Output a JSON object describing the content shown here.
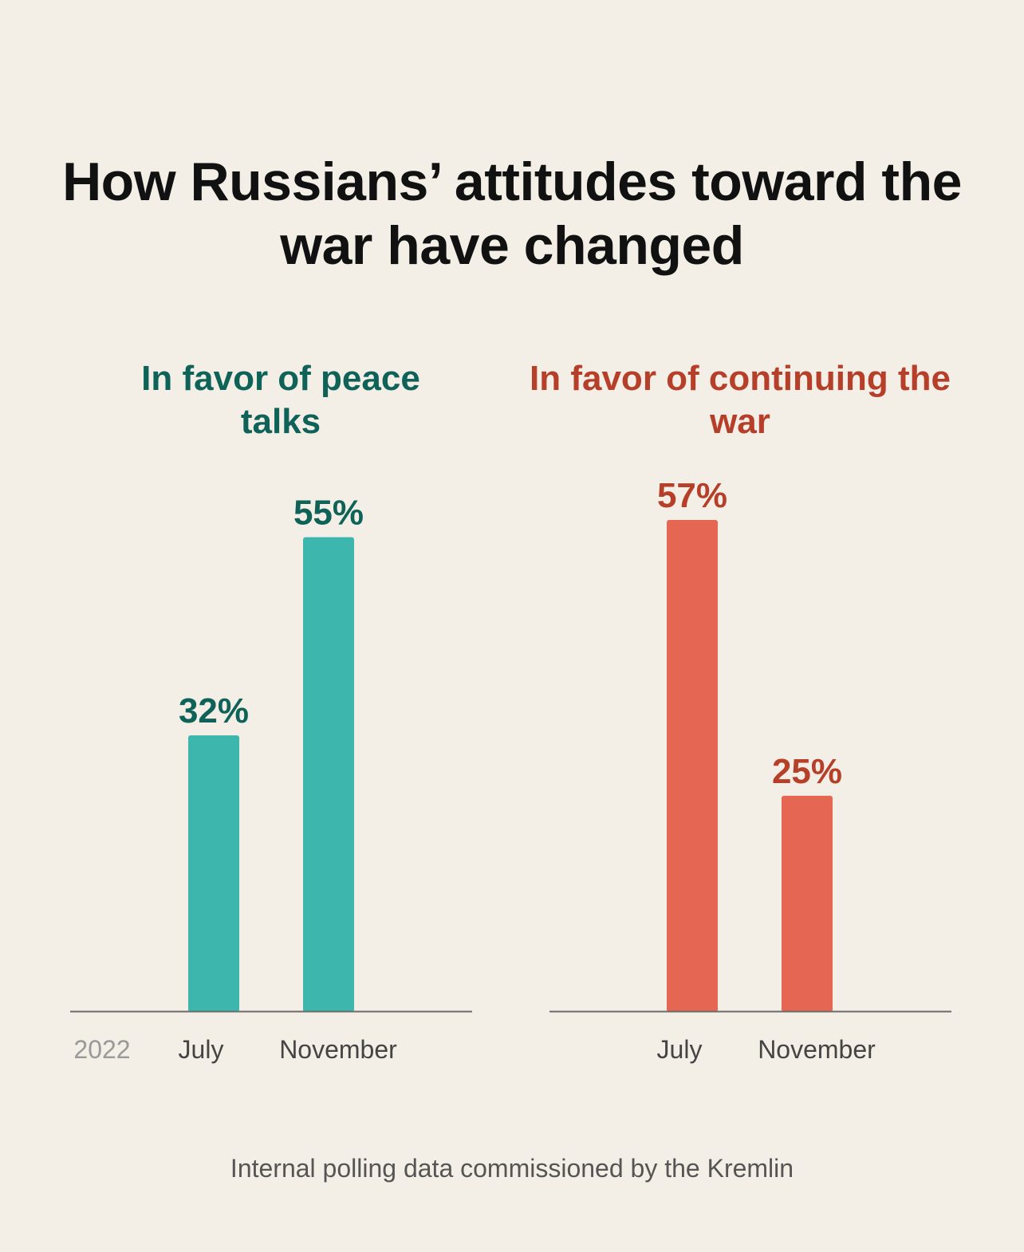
{
  "title": "How Russians’ attitudes toward the war have changed",
  "footnote": "Internal polling data commissioned by the Kremlin",
  "chart_data": [
    {
      "type": "bar",
      "title": "In favor of peace talks",
      "year_label": "2022",
      "categories": [
        "July",
        "November"
      ],
      "values": [
        32,
        55
      ],
      "value_labels": [
        "32%",
        "55%"
      ],
      "unit": "%",
      "ylim": [
        0,
        57
      ],
      "grid": false,
      "bar_color": "#3db6ae",
      "label_color": "#0e6257"
    },
    {
      "type": "bar",
      "title": "In favor of continuing the war",
      "categories": [
        "July",
        "November"
      ],
      "values": [
        57,
        25
      ],
      "value_labels": [
        "57%",
        "25%"
      ],
      "unit": "%",
      "ylim": [
        0,
        57
      ],
      "grid": false,
      "bar_color": "#e56753",
      "label_color": "#b63f29"
    }
  ]
}
